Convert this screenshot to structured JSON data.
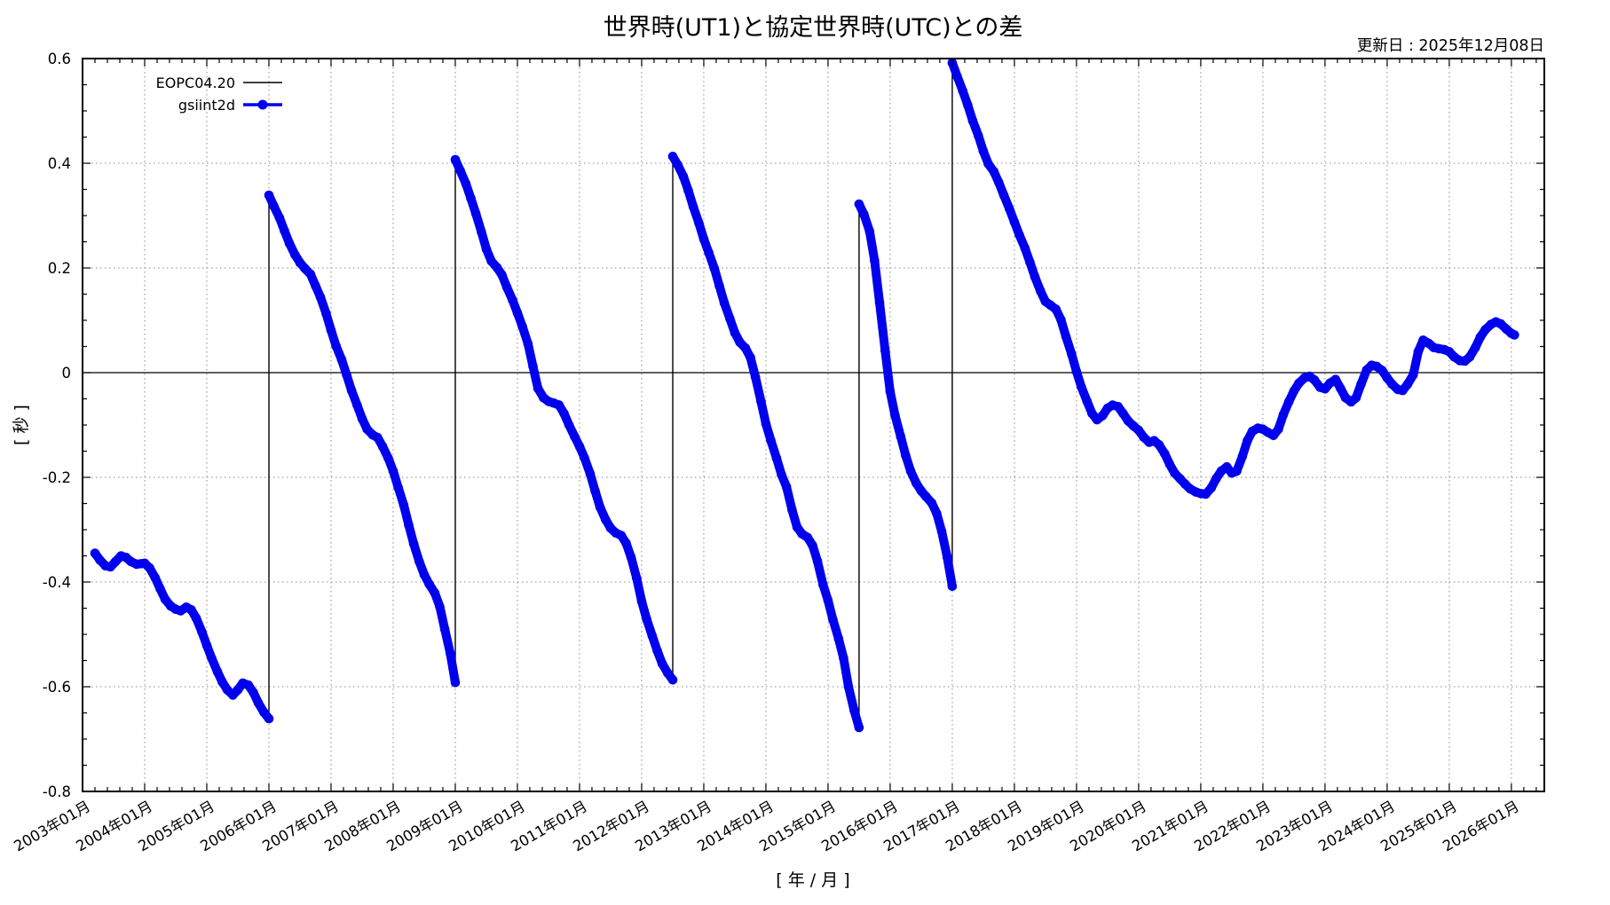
{
  "header": {
    "title": "世界時(UT1)と協定世界時(UTC)との差",
    "updated": "更新日 : 2025年12月08日"
  },
  "chart_data": {
    "type": "line",
    "title": "世界時(UT1)と協定世界時(UTC)との差",
    "xlabel": "[ 年 / 月 ]",
    "ylabel": "[ 秒 ]",
    "xlim": [
      2003.0,
      2026.53
    ],
    "ylim": [
      -0.8,
      0.6
    ],
    "grid": true,
    "grid_color": "#8a8a8a",
    "zero_line": 0,
    "accent_blue": "#0000ee",
    "line_black": "#000000",
    "x_minor_step": 0.2,
    "y_minor_step": 0.05,
    "x_major_ticks": [
      {
        "value": 2003,
        "label": "2003年01月"
      },
      {
        "value": 2004,
        "label": "2004年01月"
      },
      {
        "value": 2005,
        "label": "2005年01月"
      },
      {
        "value": 2006,
        "label": "2006年01月"
      },
      {
        "value": 2007,
        "label": "2007年01月"
      },
      {
        "value": 2008,
        "label": "2008年01月"
      },
      {
        "value": 2009,
        "label": "2009年01月"
      },
      {
        "value": 2010,
        "label": "2010年01月"
      },
      {
        "value": 2011,
        "label": "2011年01月"
      },
      {
        "value": 2012,
        "label": "2012年01月"
      },
      {
        "value": 2013,
        "label": "2013年01月"
      },
      {
        "value": 2014,
        "label": "2014年01月"
      },
      {
        "value": 2015,
        "label": "2015年01月"
      },
      {
        "value": 2016,
        "label": "2016年01月"
      },
      {
        "value": 2017,
        "label": "2017年01月"
      },
      {
        "value": 2018,
        "label": "2018年01月"
      },
      {
        "value": 2019,
        "label": "2019年01月"
      },
      {
        "value": 2020,
        "label": "2020年01月"
      },
      {
        "value": 2021,
        "label": "2021年01月"
      },
      {
        "value": 2022,
        "label": "2022年01月"
      },
      {
        "value": 2023,
        "label": "2023年01月"
      },
      {
        "value": 2024,
        "label": "2024年01月"
      },
      {
        "value": 2025,
        "label": "2025年01月"
      },
      {
        "value": 2026,
        "label": "2026年01月"
      }
    ],
    "y_major_ticks": [
      {
        "value": 0.6,
        "label": "0.6"
      },
      {
        "value": 0.4,
        "label": "0.4"
      },
      {
        "value": 0.2,
        "label": "0.2"
      },
      {
        "value": 0,
        "label": "0"
      },
      {
        "value": -0.2,
        "label": "-0.2"
      },
      {
        "value": -0.4,
        "label": "-0.4"
      },
      {
        "value": -0.6,
        "label": "-0.6"
      },
      {
        "value": -0.8,
        "label": "-0.8"
      }
    ],
    "legend": [
      {
        "name": "EOPC04.20",
        "color": "#000000",
        "style": "line"
      },
      {
        "name": "gsiint2d",
        "color": "#0000ee",
        "style": "line-with-dot"
      }
    ],
    "leap_second_jumps": [
      "2006-01",
      "2009-01",
      "2012-07",
      "2015-07",
      "2017-01"
    ],
    "series": [
      {
        "name": "EOPC04.20",
        "color": "#000000",
        "render": "thin-line-connected-across-jumps"
      },
      {
        "name": "gsiint2d",
        "color": "#0000ee",
        "render": "thick-dot-rope-per-segment"
      }
    ],
    "segments": [
      [
        [
          2003.2,
          -0.345
        ],
        [
          2003.28,
          -0.358
        ],
        [
          2003.37,
          -0.369
        ],
        [
          2003.45,
          -0.371
        ],
        [
          2003.53,
          -0.361
        ],
        [
          2003.62,
          -0.35
        ],
        [
          2003.7,
          -0.353
        ],
        [
          2003.78,
          -0.361
        ],
        [
          2003.87,
          -0.366
        ],
        [
          2003.95,
          -0.365
        ],
        [
          2004.0,
          -0.364
        ],
        [
          2004.08,
          -0.373
        ],
        [
          2004.17,
          -0.392
        ],
        [
          2004.25,
          -0.413
        ],
        [
          2004.33,
          -0.433
        ],
        [
          2004.42,
          -0.446
        ],
        [
          2004.5,
          -0.452
        ],
        [
          2004.58,
          -0.455
        ],
        [
          2004.67,
          -0.448
        ],
        [
          2004.75,
          -0.453
        ],
        [
          2004.83,
          -0.469
        ],
        [
          2004.92,
          -0.495
        ],
        [
          2005.0,
          -0.521
        ],
        [
          2005.08,
          -0.546
        ],
        [
          2005.17,
          -0.571
        ],
        [
          2005.25,
          -0.591
        ],
        [
          2005.33,
          -0.606
        ],
        [
          2005.42,
          -0.616
        ],
        [
          2005.5,
          -0.606
        ],
        [
          2005.58,
          -0.593
        ],
        [
          2005.67,
          -0.597
        ],
        [
          2005.75,
          -0.611
        ],
        [
          2005.83,
          -0.631
        ],
        [
          2005.92,
          -0.649
        ],
        [
          2006.0,
          -0.661
        ]
      ],
      [
        [
          2006.0,
          0.339
        ],
        [
          2006.08,
          0.318
        ],
        [
          2006.17,
          0.296
        ],
        [
          2006.25,
          0.271
        ],
        [
          2006.33,
          0.247
        ],
        [
          2006.42,
          0.225
        ],
        [
          2006.5,
          0.21
        ],
        [
          2006.58,
          0.199
        ],
        [
          2006.67,
          0.188
        ],
        [
          2006.75,
          0.166
        ],
        [
          2006.83,
          0.144
        ],
        [
          2006.92,
          0.113
        ],
        [
          2007.0,
          0.081
        ],
        [
          2007.08,
          0.051
        ],
        [
          2007.17,
          0.025
        ],
        [
          2007.25,
          -0.004
        ],
        [
          2007.33,
          -0.034
        ],
        [
          2007.42,
          -0.062
        ],
        [
          2007.5,
          -0.088
        ],
        [
          2007.58,
          -0.108
        ],
        [
          2007.67,
          -0.119
        ],
        [
          2007.75,
          -0.124
        ],
        [
          2007.83,
          -0.141
        ],
        [
          2007.92,
          -0.163
        ],
        [
          2008.0,
          -0.188
        ],
        [
          2008.08,
          -0.219
        ],
        [
          2008.17,
          -0.253
        ],
        [
          2008.25,
          -0.291
        ],
        [
          2008.33,
          -0.327
        ],
        [
          2008.42,
          -0.361
        ],
        [
          2008.5,
          -0.386
        ],
        [
          2008.58,
          -0.404
        ],
        [
          2008.67,
          -0.421
        ],
        [
          2008.75,
          -0.447
        ],
        [
          2008.83,
          -0.49
        ],
        [
          2008.92,
          -0.537
        ],
        [
          2009.0,
          -0.592
        ]
      ],
      [
        [
          2009.0,
          0.407
        ],
        [
          2009.08,
          0.386
        ],
        [
          2009.17,
          0.361
        ],
        [
          2009.25,
          0.333
        ],
        [
          2009.33,
          0.304
        ],
        [
          2009.42,
          0.269
        ],
        [
          2009.5,
          0.236
        ],
        [
          2009.58,
          0.213
        ],
        [
          2009.67,
          0.201
        ],
        [
          2009.75,
          0.187
        ],
        [
          2009.83,
          0.163
        ],
        [
          2009.92,
          0.139
        ],
        [
          2010.0,
          0.114
        ],
        [
          2010.08,
          0.088
        ],
        [
          2010.17,
          0.055
        ],
        [
          2010.25,
          0.012
        ],
        [
          2010.33,
          -0.03
        ],
        [
          2010.42,
          -0.048
        ],
        [
          2010.5,
          -0.055
        ],
        [
          2010.58,
          -0.058
        ],
        [
          2010.67,
          -0.062
        ],
        [
          2010.75,
          -0.078
        ],
        [
          2010.83,
          -0.1
        ],
        [
          2010.92,
          -0.122
        ],
        [
          2011.0,
          -0.141
        ],
        [
          2011.08,
          -0.163
        ],
        [
          2011.17,
          -0.193
        ],
        [
          2011.25,
          -0.226
        ],
        [
          2011.33,
          -0.257
        ],
        [
          2011.42,
          -0.281
        ],
        [
          2011.5,
          -0.297
        ],
        [
          2011.58,
          -0.306
        ],
        [
          2011.67,
          -0.311
        ],
        [
          2011.75,
          -0.326
        ],
        [
          2011.83,
          -0.353
        ],
        [
          2011.92,
          -0.393
        ],
        [
          2012.0,
          -0.437
        ],
        [
          2012.08,
          -0.471
        ],
        [
          2012.17,
          -0.503
        ],
        [
          2012.25,
          -0.531
        ],
        [
          2012.33,
          -0.556
        ],
        [
          2012.42,
          -0.574
        ],
        [
          2012.5,
          -0.587
        ]
      ],
      [
        [
          2012.5,
          0.413
        ],
        [
          2012.58,
          0.397
        ],
        [
          2012.67,
          0.375
        ],
        [
          2012.75,
          0.348
        ],
        [
          2012.83,
          0.317
        ],
        [
          2012.92,
          0.286
        ],
        [
          2013.0,
          0.255
        ],
        [
          2013.08,
          0.229
        ],
        [
          2013.17,
          0.199
        ],
        [
          2013.25,
          0.166
        ],
        [
          2013.33,
          0.133
        ],
        [
          2013.42,
          0.103
        ],
        [
          2013.5,
          0.076
        ],
        [
          2013.58,
          0.058
        ],
        [
          2013.67,
          0.047
        ],
        [
          2013.75,
          0.029
        ],
        [
          2013.83,
          -0.008
        ],
        [
          2013.92,
          -0.055
        ],
        [
          2014.0,
          -0.098
        ],
        [
          2014.08,
          -0.13
        ],
        [
          2014.17,
          -0.163
        ],
        [
          2014.25,
          -0.195
        ],
        [
          2014.33,
          -0.218
        ],
        [
          2014.42,
          -0.262
        ],
        [
          2014.5,
          -0.295
        ],
        [
          2014.58,
          -0.308
        ],
        [
          2014.67,
          -0.315
        ],
        [
          2014.75,
          -0.33
        ],
        [
          2014.83,
          -0.36
        ],
        [
          2014.92,
          -0.405
        ],
        [
          2015.0,
          -0.435
        ],
        [
          2015.08,
          -0.472
        ],
        [
          2015.17,
          -0.508
        ],
        [
          2015.25,
          -0.545
        ],
        [
          2015.33,
          -0.6
        ],
        [
          2015.42,
          -0.645
        ],
        [
          2015.5,
          -0.678
        ]
      ],
      [
        [
          2015.5,
          0.322
        ],
        [
          2015.58,
          0.302
        ],
        [
          2015.67,
          0.27
        ],
        [
          2015.75,
          0.214
        ],
        [
          2015.83,
          0.134
        ],
        [
          2015.92,
          0.042
        ],
        [
          2016.0,
          -0.036
        ],
        [
          2016.08,
          -0.082
        ],
        [
          2016.17,
          -0.122
        ],
        [
          2016.25,
          -0.158
        ],
        [
          2016.33,
          -0.188
        ],
        [
          2016.42,
          -0.211
        ],
        [
          2016.5,
          -0.226
        ],
        [
          2016.58,
          -0.237
        ],
        [
          2016.67,
          -0.249
        ],
        [
          2016.75,
          -0.269
        ],
        [
          2016.83,
          -0.303
        ],
        [
          2016.92,
          -0.353
        ],
        [
          2017.0,
          -0.408
        ]
      ],
      [
        [
          2017.0,
          0.592
        ],
        [
          2017.08,
          0.566
        ],
        [
          2017.17,
          0.538
        ],
        [
          2017.25,
          0.511
        ],
        [
          2017.33,
          0.481
        ],
        [
          2017.42,
          0.453
        ],
        [
          2017.5,
          0.423
        ],
        [
          2017.58,
          0.399
        ],
        [
          2017.67,
          0.384
        ],
        [
          2017.75,
          0.363
        ],
        [
          2017.83,
          0.339
        ],
        [
          2017.92,
          0.313
        ],
        [
          2018.0,
          0.288
        ],
        [
          2018.08,
          0.263
        ],
        [
          2018.17,
          0.238
        ],
        [
          2018.25,
          0.211
        ],
        [
          2018.33,
          0.183
        ],
        [
          2018.42,
          0.156
        ],
        [
          2018.5,
          0.136
        ],
        [
          2018.58,
          0.129
        ],
        [
          2018.67,
          0.121
        ],
        [
          2018.75,
          0.101
        ],
        [
          2018.83,
          0.069
        ],
        [
          2018.92,
          0.036
        ],
        [
          2019.0,
          0.002
        ],
        [
          2019.08,
          -0.028
        ],
        [
          2019.17,
          -0.055
        ],
        [
          2019.25,
          -0.078
        ],
        [
          2019.33,
          -0.09
        ],
        [
          2019.42,
          -0.082
        ],
        [
          2019.5,
          -0.068
        ],
        [
          2019.58,
          -0.062
        ],
        [
          2019.67,
          -0.065
        ],
        [
          2019.75,
          -0.078
        ],
        [
          2019.83,
          -0.092
        ],
        [
          2019.92,
          -0.102
        ],
        [
          2020.0,
          -0.11
        ],
        [
          2020.08,
          -0.123
        ],
        [
          2020.17,
          -0.133
        ],
        [
          2020.25,
          -0.13
        ],
        [
          2020.33,
          -0.138
        ],
        [
          2020.42,
          -0.155
        ],
        [
          2020.5,
          -0.175
        ],
        [
          2020.58,
          -0.192
        ],
        [
          2020.67,
          -0.203
        ],
        [
          2020.75,
          -0.213
        ],
        [
          2020.83,
          -0.222
        ],
        [
          2020.92,
          -0.228
        ],
        [
          2021.0,
          -0.231
        ],
        [
          2021.08,
          -0.232
        ],
        [
          2021.17,
          -0.22
        ],
        [
          2021.25,
          -0.202
        ],
        [
          2021.33,
          -0.188
        ],
        [
          2021.42,
          -0.18
        ],
        [
          2021.5,
          -0.192
        ],
        [
          2021.58,
          -0.188
        ],
        [
          2021.67,
          -0.16
        ],
        [
          2021.75,
          -0.13
        ],
        [
          2021.83,
          -0.112
        ],
        [
          2021.92,
          -0.106
        ],
        [
          2022.0,
          -0.108
        ],
        [
          2022.08,
          -0.114
        ],
        [
          2022.17,
          -0.12
        ],
        [
          2022.25,
          -0.108
        ],
        [
          2022.33,
          -0.08
        ],
        [
          2022.42,
          -0.055
        ],
        [
          2022.5,
          -0.035
        ],
        [
          2022.58,
          -0.02
        ],
        [
          2022.67,
          -0.01
        ],
        [
          2022.75,
          -0.007
        ],
        [
          2022.83,
          -0.014
        ],
        [
          2022.92,
          -0.028
        ],
        [
          2023.0,
          -0.031
        ],
        [
          2023.08,
          -0.02
        ],
        [
          2023.17,
          -0.013
        ],
        [
          2023.25,
          -0.03
        ],
        [
          2023.33,
          -0.048
        ],
        [
          2023.42,
          -0.056
        ],
        [
          2023.5,
          -0.048
        ],
        [
          2023.58,
          -0.022
        ],
        [
          2023.67,
          0.005
        ],
        [
          2023.75,
          0.014
        ],
        [
          2023.83,
          0.012
        ],
        [
          2023.92,
          0.004
        ],
        [
          2024.0,
          -0.01
        ],
        [
          2024.08,
          -0.022
        ],
        [
          2024.17,
          -0.032
        ],
        [
          2024.25,
          -0.034
        ],
        [
          2024.33,
          -0.022
        ],
        [
          2024.42,
          -0.004
        ],
        [
          2024.5,
          0.04
        ],
        [
          2024.58,
          0.062
        ],
        [
          2024.67,
          0.056
        ],
        [
          2024.75,
          0.048
        ],
        [
          2024.83,
          0.046
        ],
        [
          2024.92,
          0.044
        ],
        [
          2025.0,
          0.04
        ],
        [
          2025.08,
          0.03
        ],
        [
          2025.17,
          0.023
        ],
        [
          2025.25,
          0.022
        ],
        [
          2025.33,
          0.03
        ],
        [
          2025.42,
          0.048
        ],
        [
          2025.5,
          0.068
        ],
        [
          2025.58,
          0.082
        ],
        [
          2025.67,
          0.092
        ],
        [
          2025.75,
          0.097
        ],
        [
          2025.83,
          0.093
        ],
        [
          2025.92,
          0.083
        ],
        [
          2026.0,
          0.075
        ],
        [
          2026.05,
          0.072
        ]
      ]
    ]
  }
}
